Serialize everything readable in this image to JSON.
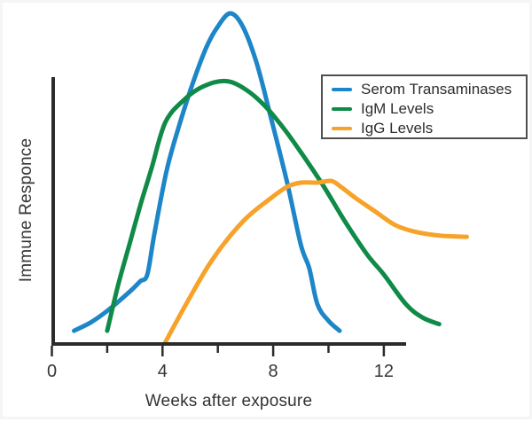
{
  "chart_data": {
    "type": "line",
    "title": "",
    "xlabel": "Weeks after exposure",
    "ylabel": "Immune Responce",
    "xlim": [
      0,
      13
    ],
    "ylim": [
      0,
      100
    ],
    "grid": false,
    "legend_position": "upper right",
    "x_ticks_major": [
      0,
      4,
      8,
      12
    ],
    "x_tick_labels": [
      "0",
      "4",
      "8",
      "12"
    ],
    "x_ticks_minor": [
      2,
      6,
      10
    ],
    "axis_color": "#2b2b2b",
    "series": [
      {
        "name": "Serom Transaminases",
        "color": "#1d86c8",
        "x_weeks": [
          0.8,
          1.4,
          2.0,
          2.5,
          2.9,
          3.2,
          3.45,
          3.7,
          4.15,
          4.6,
          5.1,
          5.6,
          6.0,
          6.45,
          6.9,
          7.4,
          7.9,
          8.5,
          9.0,
          9.3,
          9.6,
          10.0,
          10.4
        ],
        "values": [
          4,
          6.5,
          10,
          13.5,
          16.5,
          19,
          21,
          33,
          52.5,
          66,
          79,
          90,
          96,
          100,
          96,
          85,
          69,
          49,
          30,
          23,
          12,
          7,
          4
        ]
      },
      {
        "name": "IgM Levels",
        "color": "#0f8a47",
        "x_weeks": [
          2.0,
          2.4,
          2.8,
          3.2,
          3.6,
          4.1,
          4.8,
          5.5,
          6.3,
          7.0,
          7.7,
          8.4,
          9.0,
          9.8,
          10.6,
          11.4,
          12.0,
          12.8,
          13.4,
          14.0
        ],
        "values": [
          4,
          18,
          30,
          42,
          53,
          67,
          74,
          78,
          79.5,
          77,
          72,
          65,
          58,
          48,
          37,
          27,
          21,
          12,
          8,
          6
        ]
      },
      {
        "name": "IgG Levels",
        "color": "#f7a229",
        "x_weeks": [
          4.1,
          4.85,
          5.8,
          6.9,
          7.9,
          8.5,
          9.0,
          9.6,
          10.1,
          10.45,
          11.0,
          11.7,
          12.4,
          13.1,
          14.0,
          15.0
        ],
        "values": [
          0.5,
          12,
          25.5,
          37,
          44,
          47.5,
          48.8,
          48.8,
          49.3,
          47.5,
          44,
          40,
          36,
          34,
          32.8,
          32.4
        ]
      }
    ]
  }
}
